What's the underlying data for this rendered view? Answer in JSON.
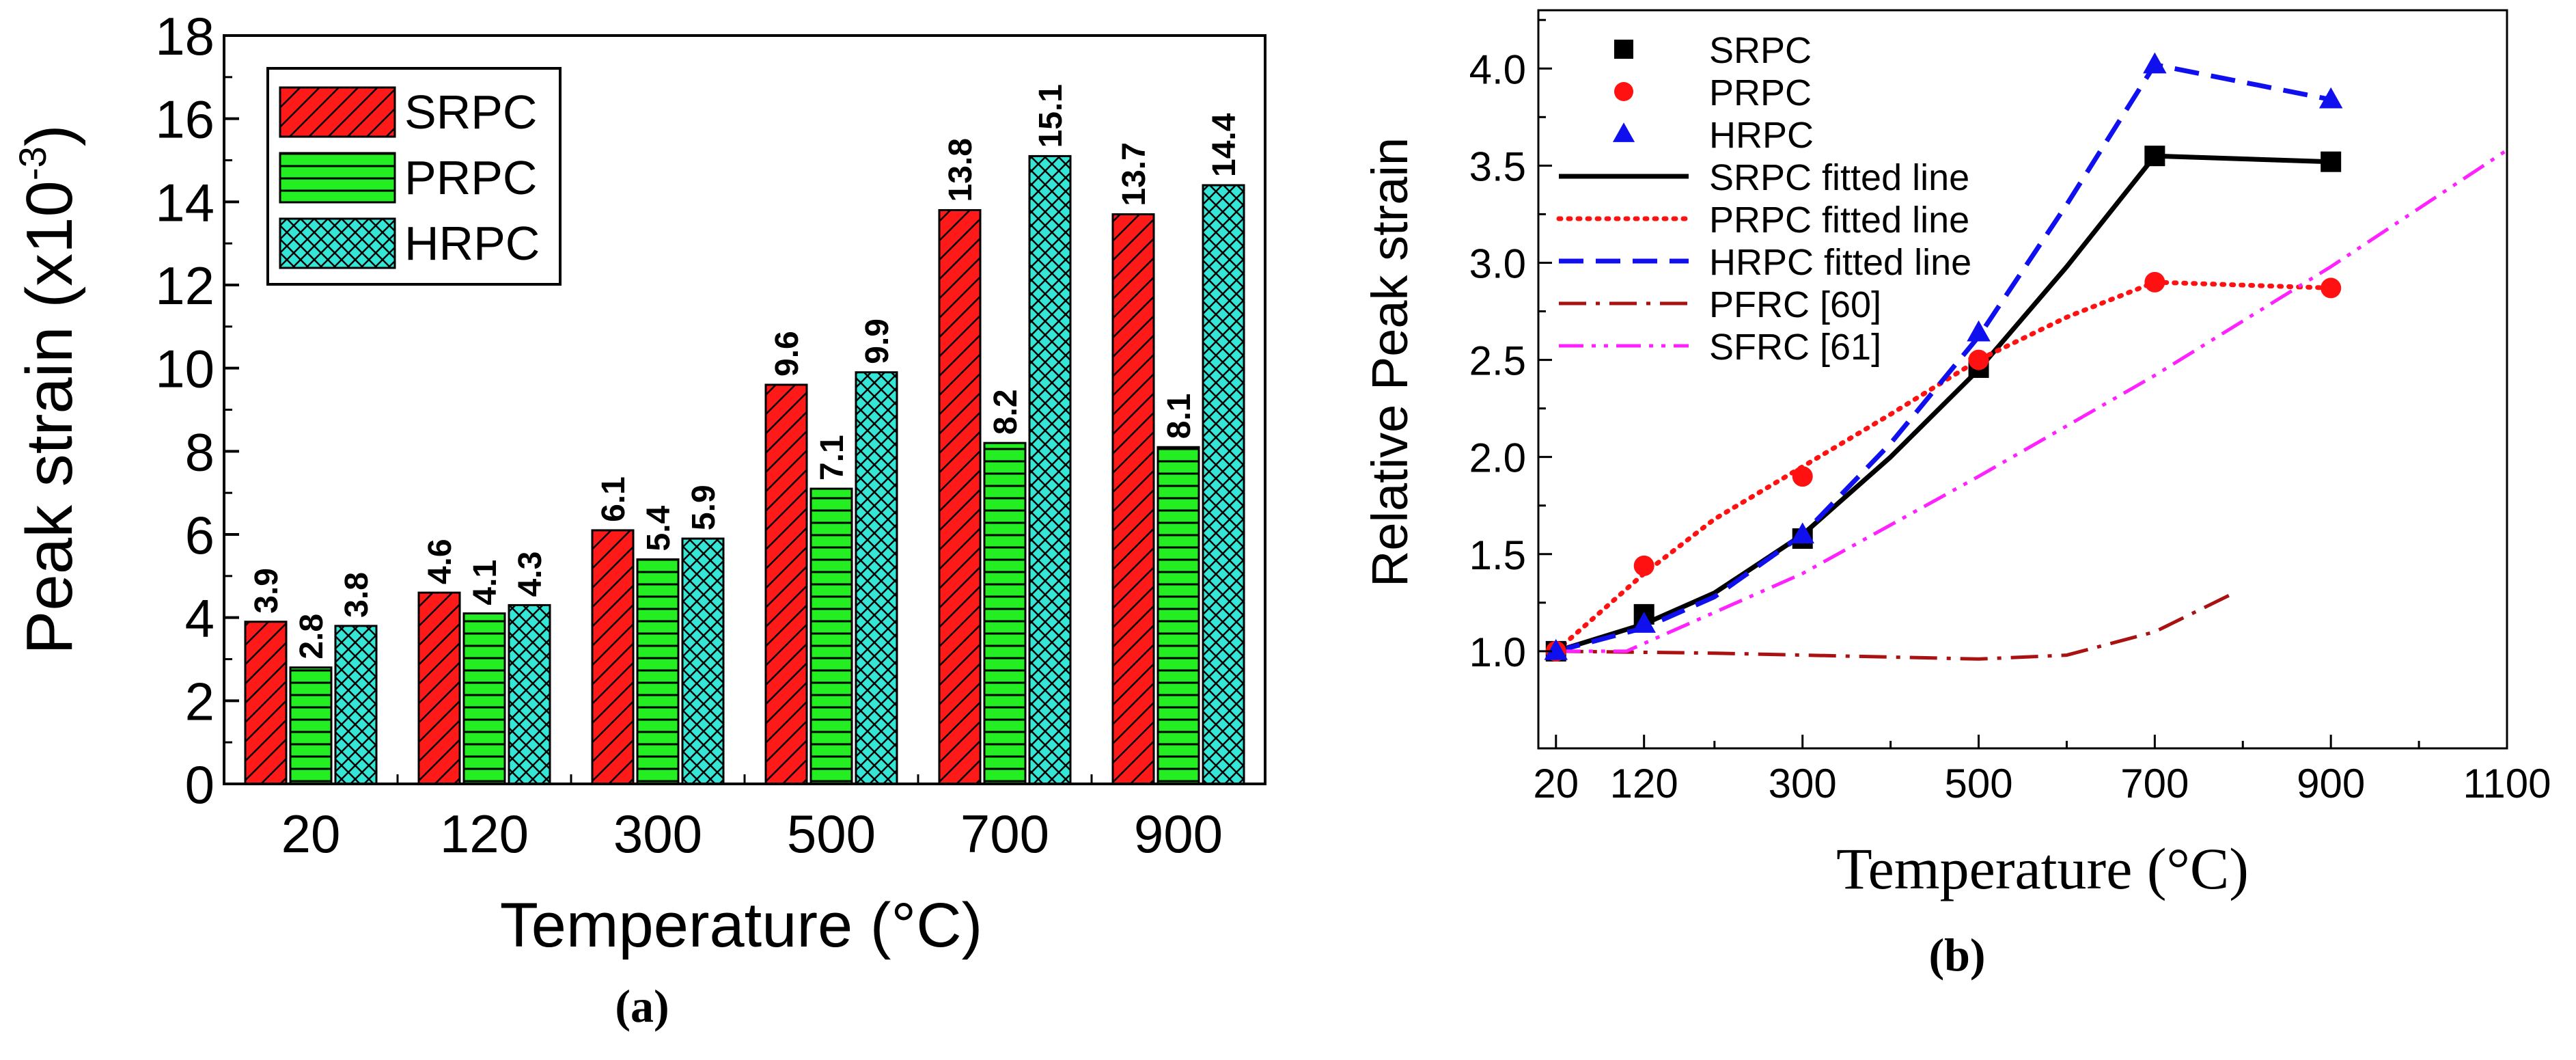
{
  "chart_data": [
    {
      "panel_label": "(a)",
      "type": "bar",
      "xlabel": "Temperature (°C)",
      "ylabel_main": "Peak strain (x10",
      "ylabel_exp": "-3",
      "ylabel_close": ")",
      "ylim": [
        0,
        18
      ],
      "yticks": [
        "0",
        "2",
        "4",
        "6",
        "8",
        "10",
        "12",
        "14",
        "16",
        "18"
      ],
      "categories": [
        "20",
        "120",
        "300",
        "500",
        "700",
        "900"
      ],
      "legend_position": "top-left",
      "series": [
        {
          "name": "SRPC",
          "color": "#ff1a1a",
          "pattern": "diagonal",
          "values": [
            3.9,
            4.6,
            6.1,
            9.6,
            13.8,
            13.7
          ],
          "labels": [
            "3.9",
            "4.6",
            "6.1",
            "9.6",
            "13.8",
            "13.7"
          ]
        },
        {
          "name": "PRPC",
          "color": "#22ee22",
          "pattern": "horizontal",
          "values": [
            2.8,
            4.1,
            5.4,
            7.1,
            8.2,
            8.1
          ],
          "labels": [
            "2.8",
            "4.1",
            "5.4",
            "7.1",
            "8.2",
            "8.1"
          ]
        },
        {
          "name": "HRPC",
          "color": "#33e6d6",
          "pattern": "crosshatch",
          "values": [
            3.8,
            4.3,
            5.9,
            9.9,
            15.1,
            14.4
          ],
          "labels": [
            "3.8",
            "4.3",
            "5.9",
            "9.9",
            "15.1",
            "14.4"
          ]
        }
      ]
    },
    {
      "panel_label": "(b)",
      "type": "line",
      "xlabel": "Temperature (°C)",
      "ylabel": "Relative Peak strain",
      "xlim": [
        0,
        1100
      ],
      "ylim": [
        0.5,
        4.3
      ],
      "xticks": [
        "20",
        "120",
        "300",
        "500",
        "700",
        "900",
        "1100"
      ],
      "yticks": [
        "1.0",
        "1.5",
        "2.0",
        "2.5",
        "3.0",
        "3.5",
        "4.0"
      ],
      "legend_position": "top-left",
      "series": [
        {
          "name": "SRPC",
          "kind": "markers",
          "marker": "square",
          "color": "#000000",
          "x": [
            20,
            120,
            300,
            500,
            700,
            900
          ],
          "y": [
            1.0,
            1.19,
            1.58,
            2.46,
            3.55,
            3.52
          ]
        },
        {
          "name": "PRPC",
          "kind": "markers",
          "marker": "circle",
          "color": "#ff1111",
          "x": [
            20,
            120,
            300,
            500,
            700,
            900
          ],
          "y": [
            1.0,
            1.44,
            1.9,
            2.5,
            2.9,
            2.87
          ]
        },
        {
          "name": "HRPC",
          "kind": "markers",
          "marker": "triangle",
          "color": "#1010ee",
          "x": [
            20,
            120,
            300,
            500,
            700,
            900
          ],
          "y": [
            1.0,
            1.14,
            1.6,
            2.64,
            4.02,
            3.84
          ]
        },
        {
          "name": "SRPC fitted line",
          "kind": "line",
          "dash": "solid",
          "color": "#000000",
          "x": [
            20,
            120,
            200,
            300,
            400,
            500,
            600,
            700,
            900
          ],
          "y": [
            1.0,
            1.14,
            1.3,
            1.6,
            2.0,
            2.45,
            2.98,
            3.55,
            3.52
          ]
        },
        {
          "name": "PRPC fitted line",
          "kind": "line",
          "dash": "dot",
          "color": "#ff1111",
          "x": [
            20,
            120,
            200,
            300,
            400,
            500,
            600,
            700,
            900
          ],
          "y": [
            1.0,
            1.4,
            1.68,
            1.95,
            2.22,
            2.5,
            2.72,
            2.9,
            2.87
          ]
        },
        {
          "name": "HRPC fitted line",
          "kind": "line",
          "dash": "dash",
          "color": "#1010ee",
          "x": [
            20,
            120,
            200,
            300,
            400,
            500,
            600,
            700,
            900
          ],
          "y": [
            1.0,
            1.12,
            1.28,
            1.6,
            2.07,
            2.62,
            3.3,
            4.02,
            3.84
          ]
        },
        {
          "name": "PFRC [60]",
          "kind": "line",
          "dash": "dashdot",
          "color": "#aa1111",
          "x": [
            20,
            200,
            400,
            500,
            600,
            700,
            790
          ],
          "y": [
            1.0,
            0.99,
            0.97,
            0.96,
            0.98,
            1.1,
            1.3
          ]
        },
        {
          "name": "SFRC [61]",
          "kind": "line",
          "dash": "dashdotdot",
          "color": "#ff22ff",
          "x": [
            20,
            100,
            300,
            500,
            700,
            900,
            1100
          ],
          "y": [
            1.0,
            1.0,
            1.4,
            1.9,
            2.42,
            2.98,
            3.58
          ]
        }
      ]
    }
  ]
}
